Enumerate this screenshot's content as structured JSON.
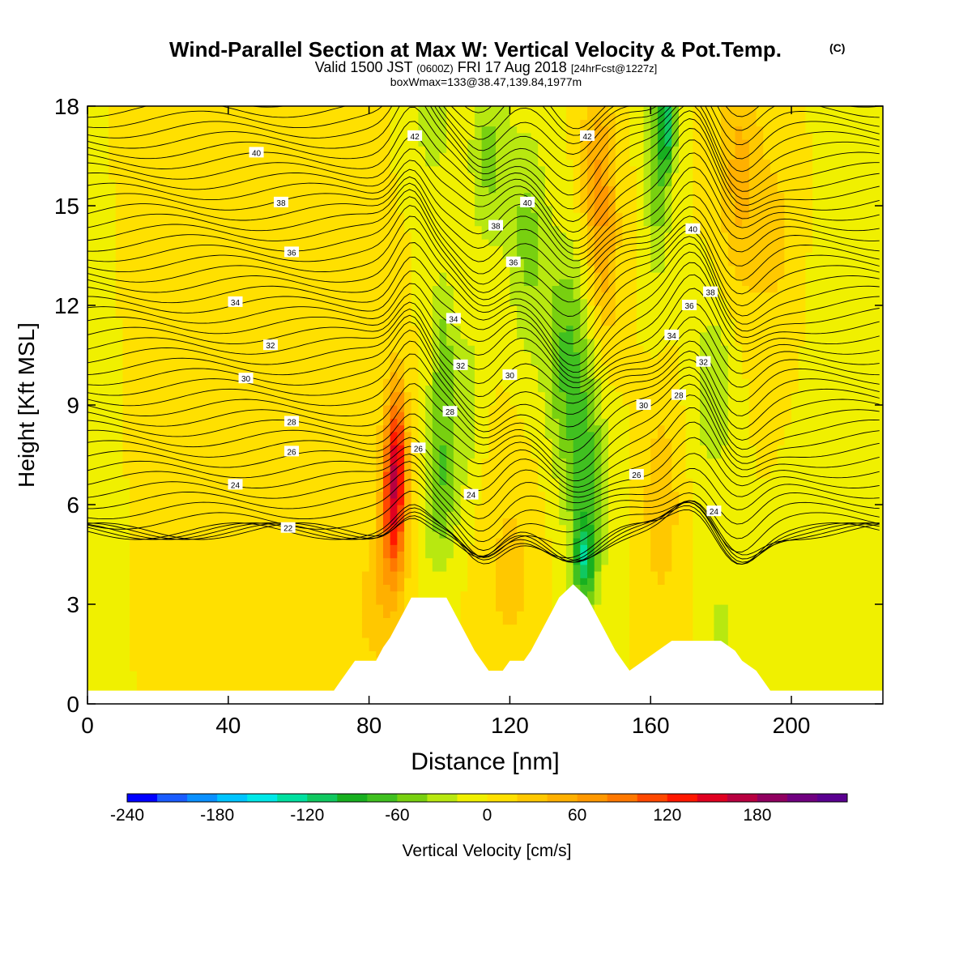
{
  "header": {
    "title": "Wind-Parallel Section at Max W: Vertical Velocity & Pot.Temp.",
    "copyright": "(C)",
    "valid_main": "Valid 1500 JST",
    "valid_z": "(0600Z)",
    "valid_date": "FRI 17 Aug 2018",
    "forecast": "[24hrFcst@1227z]",
    "box": "boxWmax=133@38.47,139.84,1977m"
  },
  "chart_data": {
    "type": "heatmap",
    "xlabel": "Distance [nm]",
    "ylabel": "Height [Kft MSL]",
    "xlim": [
      0,
      226
    ],
    "ylim": [
      0,
      18
    ],
    "x_ticks": [
      0,
      40,
      80,
      120,
      160,
      200
    ],
    "y_ticks": [
      0,
      3,
      6,
      9,
      12,
      15,
      18
    ],
    "colorbar": {
      "label": "Vertical Velocity [cm/s]",
      "range": [
        -240,
        240
      ],
      "step": 20,
      "tick_values": [
        -240,
        -180,
        -120,
        -60,
        0,
        60,
        120,
        180
      ],
      "tick_labels": [
        "-240",
        "-180",
        "-120",
        "-60",
        "0",
        "60",
        "120",
        "180"
      ],
      "colors": [
        "#0000ff",
        "#1a5cff",
        "#0a90ff",
        "#00c4ff",
        "#00e8e8",
        "#00e0a0",
        "#10c860",
        "#18b020",
        "#40c020",
        "#78d010",
        "#b8e810",
        "#f0f000",
        "#ffe000",
        "#ffc800",
        "#ffb000",
        "#ff9800",
        "#ff7800",
        "#ff4800",
        "#ff1800",
        "#e00020",
        "#b80040",
        "#900060",
        "#700080",
        "#5a0090"
      ]
    },
    "terrain": [
      [
        0,
        0.4
      ],
      [
        70,
        0.4
      ],
      [
        72,
        0.7
      ],
      [
        74,
        1.0
      ],
      [
        76,
        1.3
      ],
      [
        82,
        1.3
      ],
      [
        84,
        1.7
      ],
      [
        86,
        2.0
      ],
      [
        88,
        2.4
      ],
      [
        90,
        2.8
      ],
      [
        92,
        3.2
      ],
      [
        102,
        3.2
      ],
      [
        104,
        2.8
      ],
      [
        106,
        2.4
      ],
      [
        108,
        2.0
      ],
      [
        110,
        1.6
      ],
      [
        112,
        1.3
      ],
      [
        114,
        1.0
      ],
      [
        118,
        1.0
      ],
      [
        120,
        1.3
      ],
      [
        124,
        1.3
      ],
      [
        126,
        1.6
      ],
      [
        128,
        2.0
      ],
      [
        130,
        2.4
      ],
      [
        132,
        2.8
      ],
      [
        134,
        3.2
      ],
      [
        138,
        3.6
      ],
      [
        142,
        3.2
      ],
      [
        144,
        2.8
      ],
      [
        146,
        2.4
      ],
      [
        148,
        2.0
      ],
      [
        150,
        1.6
      ],
      [
        152,
        1.3
      ],
      [
        154,
        1.0
      ],
      [
        158,
        1.3
      ],
      [
        162,
        1.6
      ],
      [
        166,
        1.9
      ],
      [
        180,
        1.9
      ],
      [
        184,
        1.6
      ],
      [
        186,
        1.3
      ],
      [
        190,
        1.0
      ],
      [
        192,
        0.7
      ],
      [
        194,
        0.4
      ],
      [
        226,
        0.4
      ]
    ],
    "w_features": [
      {
        "x": 87,
        "z": 6.0,
        "sx": 2.5,
        "sz": 1.8,
        "w": 130,
        "tilt": 0
      },
      {
        "x": 88,
        "z": 8.0,
        "sx": 2.0,
        "sz": 1.5,
        "w": 70,
        "tilt": 0
      },
      {
        "x": 100,
        "z": 6.5,
        "sx": 3.5,
        "sz": 1.8,
        "w": -55,
        "tilt": 0
      },
      {
        "x": 101,
        "z": 10.5,
        "sx": 2.5,
        "sz": 2.0,
        "w": -45,
        "tilt": 0
      },
      {
        "x": 108,
        "z": 9.0,
        "sx": 3.0,
        "sz": 2.0,
        "w": -30,
        "tilt": 0
      },
      {
        "x": 98,
        "z": 17.5,
        "sx": 3.0,
        "sz": 1.2,
        "w": -40,
        "tilt": 0
      },
      {
        "x": 114,
        "z": 16.5,
        "sx": 4.0,
        "sz": 2.0,
        "w": -45,
        "tilt": 0
      },
      {
        "x": 125,
        "z": 14.0,
        "sx": 4.0,
        "sz": 2.5,
        "w": -45,
        "tilt": 0
      },
      {
        "x": 136,
        "z": 10.5,
        "sx": 4.5,
        "sz": 2.5,
        "w": -60,
        "tilt": 0
      },
      {
        "x": 142,
        "z": 6.5,
        "sx": 4.0,
        "sz": 2.5,
        "w": -65,
        "tilt": 0
      },
      {
        "x": 141,
        "z": 4.3,
        "sx": 2.0,
        "sz": 0.8,
        "w": -80,
        "tilt": 0
      },
      {
        "x": 162,
        "z": 16.5,
        "sx": 2.5,
        "sz": 2.5,
        "w": -60,
        "tilt": 0
      },
      {
        "x": 165,
        "z": 17.5,
        "sx": 1.6,
        "sz": 1.0,
        "w": -90,
        "tilt": 0
      },
      {
        "x": 178,
        "z": 9.5,
        "sx": 4.0,
        "sz": 1.8,
        "w": -40,
        "tilt": 0
      },
      {
        "x": 180,
        "z": 2.2,
        "sx": 3.0,
        "sz": 1.0,
        "w": -30,
        "tilt": 0
      },
      {
        "x": 145,
        "z": 16.0,
        "sx": 3.5,
        "sz": 2.0,
        "w": 55,
        "tilt": 0
      },
      {
        "x": 147,
        "z": 13.0,
        "sx": 3.0,
        "sz": 2.0,
        "w": 35,
        "tilt": 0
      },
      {
        "x": 185,
        "z": 16.0,
        "sx": 4.0,
        "sz": 2.5,
        "w": 45,
        "tilt": 0
      },
      {
        "x": 195,
        "z": 14.0,
        "sx": 5.0,
        "sz": 2.5,
        "w": 25,
        "tilt": 0
      },
      {
        "x": 163,
        "z": 6.0,
        "sx": 3.5,
        "sz": 2.0,
        "w": 40,
        "tilt": 0
      },
      {
        "x": 82,
        "z": 3.0,
        "sx": 4.0,
        "sz": 1.5,
        "w": 30,
        "tilt": 0
      },
      {
        "x": 40,
        "z": 5.0,
        "sx": 20.0,
        "sz": 4.0,
        "w": 15,
        "tilt": 0
      },
      {
        "x": 120,
        "z": 4.0,
        "sx": 6.0,
        "sz": 2.5,
        "w": 25,
        "tilt": 0
      },
      {
        "x": 5,
        "z": 4.0,
        "sx": 8.0,
        "sz": 4.0,
        "w": -8,
        "tilt": 0
      },
      {
        "x": 218,
        "z": 10.0,
        "sx": 10.0,
        "sz": 5.0,
        "w": -10,
        "tilt": 0
      }
    ],
    "theta_labels": [
      {
        "text": "22",
        "x": 57,
        "z": 5.3
      },
      {
        "text": "24",
        "x": 42,
        "z": 6.6
      },
      {
        "text": "26",
        "x": 58,
        "z": 7.6
      },
      {
        "text": "28",
        "x": 58,
        "z": 8.5
      },
      {
        "text": "30",
        "x": 45,
        "z": 9.8
      },
      {
        "text": "32",
        "x": 52,
        "z": 10.8
      },
      {
        "text": "34",
        "x": 42,
        "z": 12.1
      },
      {
        "text": "36",
        "x": 58,
        "z": 13.6
      },
      {
        "text": "38",
        "x": 55,
        "z": 15.1
      },
      {
        "text": "40",
        "x": 48,
        "z": 16.6
      },
      {
        "text": "42",
        "x": 93,
        "z": 17.1
      },
      {
        "text": "42",
        "x": 142,
        "z": 17.1
      },
      {
        "text": "40",
        "x": 125,
        "z": 15.1
      },
      {
        "text": "38",
        "x": 116,
        "z": 14.4
      },
      {
        "text": "36",
        "x": 121,
        "z": 13.3
      },
      {
        "text": "34",
        "x": 104,
        "z": 11.6
      },
      {
        "text": "32",
        "x": 106,
        "z": 10.2
      },
      {
        "text": "30",
        "x": 120,
        "z": 9.9
      },
      {
        "text": "28",
        "x": 103,
        "z": 8.8
      },
      {
        "text": "26",
        "x": 94,
        "z": 7.7
      },
      {
        "text": "24",
        "x": 109,
        "z": 6.3
      },
      {
        "text": "24",
        "x": 178,
        "z": 5.8
      },
      {
        "text": "26",
        "x": 156,
        "z": 6.9
      },
      {
        "text": "28",
        "x": 168,
        "z": 9.3
      },
      {
        "text": "30",
        "x": 158,
        "z": 9.0
      },
      {
        "text": "32",
        "x": 175,
        "z": 10.3
      },
      {
        "text": "34",
        "x": 166,
        "z": 11.1
      },
      {
        "text": "36",
        "x": 171,
        "z": 12.0
      },
      {
        "text": "38",
        "x": 177,
        "z": 12.4
      },
      {
        "text": "40",
        "x": 172,
        "z": 14.3
      }
    ]
  }
}
